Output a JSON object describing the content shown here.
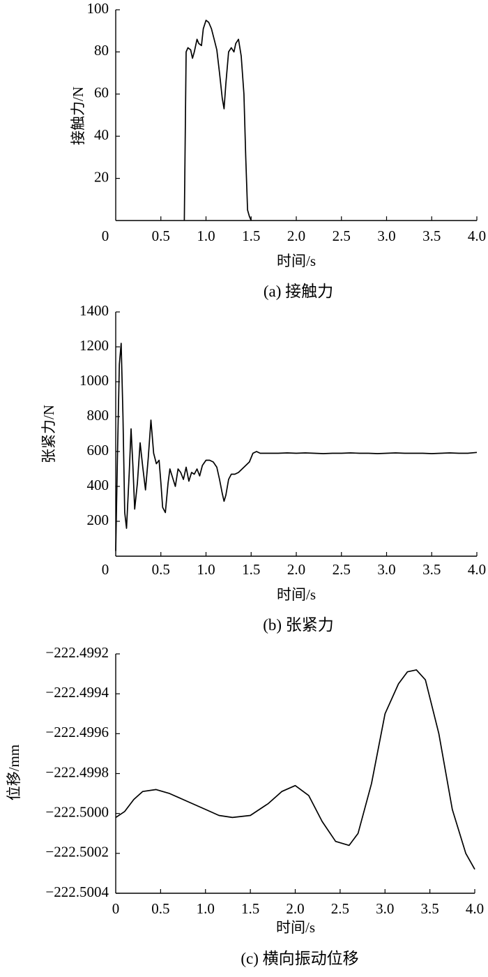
{
  "chart_data": [
    {
      "type": "line",
      "caption": "(a)  接触力",
      "xlabel": "时间/s",
      "ylabel": "接触力/N",
      "xlim": [
        0,
        4.0
      ],
      "ylim": [
        0,
        100
      ],
      "x_ticks": [
        "0",
        "0.5",
        "1.0",
        "1.5",
        "2.0",
        "2.5",
        "3.0",
        "3.5",
        "4.0"
      ],
      "y_ticks": [
        "20",
        "40",
        "60",
        "80",
        "100"
      ],
      "grid": false,
      "x": [
        0.76,
        0.78,
        0.8,
        0.83,
        0.85,
        0.87,
        0.9,
        0.92,
        0.95,
        0.97,
        1.0,
        1.03,
        1.06,
        1.09,
        1.12,
        1.15,
        1.18,
        1.2,
        1.22,
        1.25,
        1.28,
        1.31,
        1.33,
        1.36,
        1.39,
        1.42,
        1.44,
        1.46,
        1.48,
        1.5
      ],
      "y": [
        0,
        80,
        82,
        81,
        77,
        80,
        86,
        84,
        83,
        91,
        95,
        94,
        91,
        86,
        81,
        70,
        58,
        53,
        65,
        80,
        82,
        80,
        84,
        86,
        78,
        60,
        30,
        5,
        2,
        0
      ]
    },
    {
      "type": "line",
      "caption": "(b)  张紧力",
      "xlabel": "时间/s",
      "ylabel": "张紧力/N",
      "xlim": [
        0,
        4.0
      ],
      "ylim": [
        0,
        1400
      ],
      "x_ticks": [
        "0",
        "0.5",
        "1.0",
        "1.5",
        "2.0",
        "2.5",
        "3.0",
        "3.5",
        "4.0"
      ],
      "y_ticks": [
        "200",
        "400",
        "600",
        "800",
        "1000",
        "1200",
        "1400"
      ],
      "grid": false,
      "x": [
        0.0,
        0.02,
        0.04,
        0.06,
        0.08,
        0.1,
        0.12,
        0.15,
        0.17,
        0.19,
        0.21,
        0.24,
        0.27,
        0.3,
        0.33,
        0.36,
        0.39,
        0.42,
        0.45,
        0.48,
        0.5,
        0.52,
        0.55,
        0.58,
        0.6,
        0.63,
        0.66,
        0.69,
        0.72,
        0.75,
        0.78,
        0.81,
        0.84,
        0.87,
        0.9,
        0.93,
        0.96,
        1.0,
        1.04,
        1.08,
        1.12,
        1.15,
        1.18,
        1.2,
        1.22,
        1.25,
        1.28,
        1.32,
        1.36,
        1.4,
        1.44,
        1.48,
        1.52,
        1.56,
        1.6,
        1.7,
        1.8,
        1.9,
        2.0,
        2.1,
        2.2,
        2.3,
        2.4,
        2.5,
        2.6,
        2.7,
        2.8,
        2.9,
        3.0,
        3.1,
        3.2,
        3.3,
        3.4,
        3.5,
        3.6,
        3.7,
        3.8,
        3.9,
        4.0
      ],
      "y": [
        30,
        600,
        1100,
        1220,
        800,
        250,
        160,
        480,
        730,
        520,
        270,
        420,
        650,
        510,
        380,
        560,
        780,
        590,
        530,
        550,
        420,
        280,
        250,
        420,
        500,
        450,
        400,
        500,
        480,
        440,
        510,
        430,
        480,
        470,
        500,
        460,
        520,
        550,
        550,
        540,
        510,
        440,
        360,
        315,
        350,
        440,
        470,
        470,
        480,
        500,
        520,
        540,
        590,
        600,
        590,
        590,
        590,
        592,
        590,
        592,
        590,
        588,
        590,
        590,
        592,
        590,
        590,
        588,
        590,
        592,
        590,
        590,
        590,
        588,
        590,
        592,
        590,
        590,
        595
      ]
    },
    {
      "type": "line",
      "caption": "(c)  横向振动位移",
      "xlabel": "时间/s",
      "ylabel": "位移/mm",
      "xlim": [
        0,
        4.0
      ],
      "ylim": [
        -222.5004,
        -222.4992
      ],
      "x_ticks": [
        "0",
        "0.5",
        "1.0",
        "1.5",
        "2.0",
        "2.5",
        "3.0",
        "3.5",
        "4.0"
      ],
      "y_ticks": [
        "−222.5004",
        "−222.5002",
        "−222.5000",
        "−222.4998",
        "−222.4996",
        "−222.4994",
        "−222.4992"
      ],
      "grid": false,
      "x": [
        0.0,
        0.1,
        0.2,
        0.3,
        0.45,
        0.6,
        0.8,
        1.0,
        1.15,
        1.3,
        1.5,
        1.7,
        1.85,
        2.0,
        2.15,
        2.3,
        2.45,
        2.6,
        2.7,
        2.85,
        3.0,
        3.15,
        3.25,
        3.35,
        3.45,
        3.6,
        3.75,
        3.9,
        4.0
      ],
      "y": [
        -222.50002,
        -222.49999,
        -222.49993,
        -222.49989,
        -222.49988,
        -222.4999,
        -222.49994,
        -222.49998,
        -222.50001,
        -222.50002,
        -222.50001,
        -222.49995,
        -222.49989,
        -222.49986,
        -222.49991,
        -222.50004,
        -222.50014,
        -222.50016,
        -222.5001,
        -222.49985,
        -222.4995,
        -222.49935,
        -222.49929,
        -222.49928,
        -222.49933,
        -222.4996,
        -222.49998,
        -222.5002,
        -222.50028
      ]
    }
  ]
}
